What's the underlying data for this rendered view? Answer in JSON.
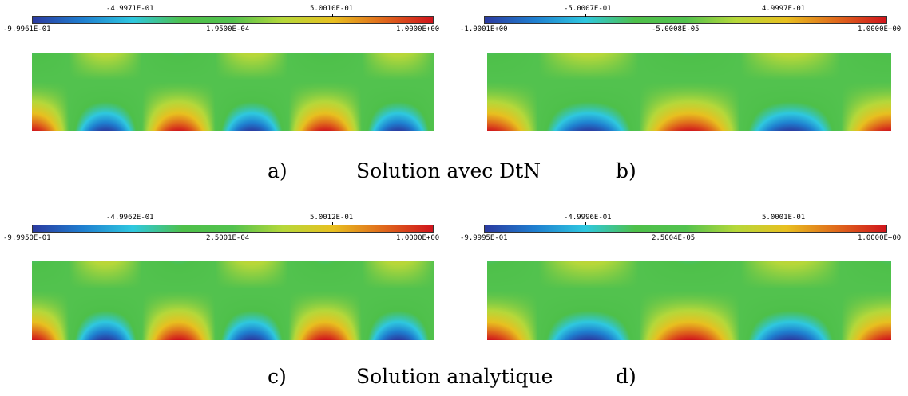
{
  "panels": [
    {
      "id": "a",
      "colorbar": {
        "top_labels": [
          "-4.9971E-01",
          "5.0010E-01"
        ],
        "bottom_labels": [
          "-9.9961E-01",
          "1.9500E-04",
          "1.0000E+00"
        ]
      },
      "field": {
        "periods_across": 2.75,
        "phase": "cos"
      }
    },
    {
      "id": "b",
      "colorbar": {
        "top_labels": [
          "-5.0007E-01",
          "4.9997E-01"
        ],
        "bottom_labels": [
          "-1.0001E+00",
          "-5.0008E-05",
          "1.0000E+00"
        ]
      },
      "field": {
        "periods_across": 2.0,
        "phase": "cos"
      }
    },
    {
      "id": "c",
      "colorbar": {
        "top_labels": [
          "-4.9962E-01",
          "5.0012E-01"
        ],
        "bottom_labels": [
          "-9.9950E-01",
          "2.5001E-04",
          "1.0000E+00"
        ]
      },
      "field": {
        "periods_across": 2.75,
        "phase": "cos"
      }
    },
    {
      "id": "d",
      "colorbar": {
        "top_labels": [
          "-4.9996E-01",
          "5.0001E-01"
        ],
        "bottom_labels": [
          "-9.9995E-01",
          "2.5004E-05",
          "1.0000E+00"
        ]
      },
      "field": {
        "periods_across": 2.0,
        "phase": "cos"
      }
    }
  ],
  "captions": {
    "row1": {
      "left": "a)",
      "middle": "Solution avec DtN",
      "right": "b)"
    },
    "row2": {
      "left": "c)",
      "middle": "Solution analytique",
      "right": "d)"
    }
  },
  "colormap": [
    "#2b3aa0",
    "#1f7fd0",
    "#2fc8e0",
    "#4ec04a",
    "#52c24e",
    "#b6d83a",
    "#e8c020",
    "#e06a1c",
    "#d0141c"
  ]
}
